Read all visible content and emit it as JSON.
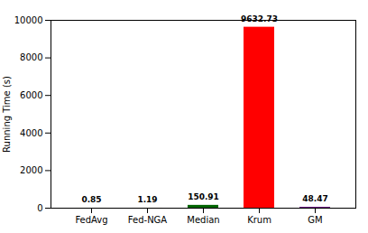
{
  "chart_data": {
    "type": "bar",
    "categories": [
      "FedAvg",
      "Fed-NGA",
      "Median",
      "Krum",
      "GM"
    ],
    "values": [
      0.85,
      1.19,
      150.91,
      9632.73,
      48.47
    ],
    "colors": [
      "#c8a000",
      "#c8a000",
      "#006400",
      "#ff0000",
      "#6a0080"
    ],
    "ylabel": "Running Time (s)",
    "ylim": [
      0,
      10000
    ],
    "yticks": [
      0,
      2000,
      4000,
      6000,
      8000,
      10000
    ],
    "data_labels": true,
    "grid": false
  }
}
